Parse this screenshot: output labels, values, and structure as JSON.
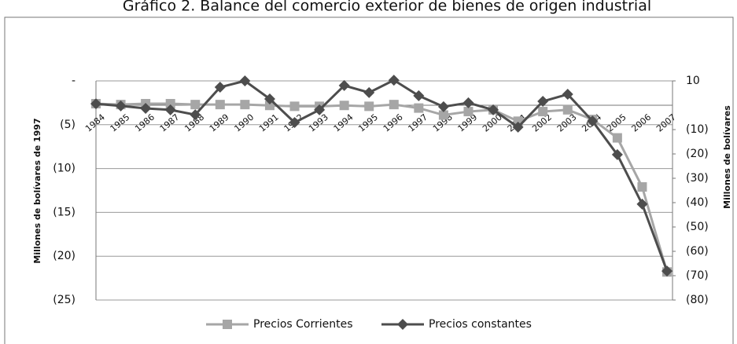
{
  "chart_data": {
    "type": "line",
    "title": "Gráfico 2. Balance del comercio exterior de bienes de origen industrial",
    "y_label": "Millones de bolívares de 1997",
    "y2_label": "Millones de bolívares",
    "categories": [
      "1984",
      "1985",
      "1986",
      "1987",
      "1988",
      "1989",
      "1990",
      "1991",
      "1992",
      "1993",
      "1994",
      "1995",
      "1996",
      "1997",
      "1998",
      "1999",
      "2000",
      "2001",
      "2002",
      "2003",
      "2004",
      "2005",
      "2006",
      "2007"
    ],
    "series": [
      {
        "name": "Precios Corrientes",
        "color": "#a6a6a6",
        "marker": "square",
        "values": [
          -2.6,
          -2.7,
          -2.6,
          -2.6,
          -2.7,
          -2.7,
          -2.7,
          -2.8,
          -2.9,
          -2.9,
          -2.8,
          -2.9,
          -2.7,
          -3.1,
          -3.9,
          -3.5,
          -3.3,
          -4.6,
          -3.5,
          -3.3,
          -4.4,
          -6.5,
          -12.1,
          -21.8
        ]
      },
      {
        "name": "Precios constantes",
        "color": "#4d4d4d",
        "marker": "diamond",
        "axis": "y2",
        "values": [
          0.6,
          -0.3,
          -1.3,
          -1.9,
          -3.9,
          7.4,
          10,
          2.6,
          -7.1,
          -1.9,
          8.1,
          5.2,
          10.3,
          3.9,
          -0.6,
          1.0,
          -1.9,
          -9.0,
          1.6,
          4.5,
          -6.5,
          -20.3,
          -40.6,
          -68.1
        ]
      }
    ],
    "ylim": [
      -25,
      0
    ],
    "yticks": [
      {
        "value": 0,
        "label": "-"
      },
      {
        "value": -5,
        "label": "(5)"
      },
      {
        "value": -10,
        "label": "(10)"
      },
      {
        "value": -15,
        "label": "(15)"
      },
      {
        "value": -20,
        "label": "(20)"
      },
      {
        "value": -25,
        "label": "(25)"
      }
    ],
    "y2lim": [
      -80,
      10
    ],
    "y2ticks": [
      10,
      {
        "value": -10,
        "label": "(10)"
      },
      {
        "value": -20,
        "label": "(20)"
      },
      {
        "value": -30,
        "label": "(30)"
      },
      {
        "value": -40,
        "label": "(40)"
      },
      {
        "value": -50,
        "label": "(50)"
      },
      {
        "value": -60,
        "label": "(60)"
      },
      {
        "value": -70,
        "label": "(70)"
      },
      {
        "value": -80,
        "label": "(80)"
      }
    ],
    "grid": true,
    "legend": "bottom"
  }
}
